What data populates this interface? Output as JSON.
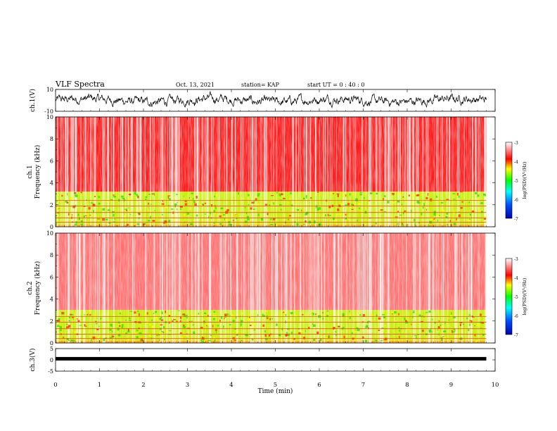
{
  "header": {
    "title": "VLF Spectra",
    "date": "Oct. 13, 2021",
    "station": "station= KAP",
    "start_ut": "start  UT =   0 : 40 : 0"
  },
  "colors": {
    "background": "#ffffff",
    "axis": "#000000",
    "trace": "#000000",
    "spectrum_high": "#ff0000",
    "spectrum_mid": "#ffff00",
    "spectrum_low": "#00ff00"
  },
  "chart_data": [
    {
      "type": "line",
      "panel": "ch1-waveform",
      "ylabel": "ch.1(V)",
      "ylim": [
        -10,
        10
      ],
      "yticks": [
        "10",
        "-10"
      ],
      "xlim": [
        0,
        10
      ],
      "description_value": "noisy waveform roughly between -7 and +9 V over 0-9.8 min"
    },
    {
      "type": "heatmap",
      "panel": "ch1-spectrogram",
      "ylabel": "ch.1\nFrequency (kHz)",
      "ylim": [
        0,
        10
      ],
      "yticks": [
        "0",
        "2",
        "4",
        "6",
        "8",
        "10"
      ],
      "xlim": [
        0,
        10
      ],
      "data_xmax": 9.8,
      "bands": [
        {
          "from": 0,
          "to": 0.2,
          "level": "low"
        },
        {
          "from": 0.2,
          "to": 3.2,
          "level": "mid"
        },
        {
          "from": 3.2,
          "to": 10,
          "level": "high"
        }
      ],
      "colorbar": {
        "label": "log(PSD)(V²/Hz)",
        "range": [
          -7,
          -3
        ],
        "ticks": [
          "-3",
          "-4",
          "-5",
          "-6",
          "-7"
        ]
      }
    },
    {
      "type": "heatmap",
      "panel": "ch2-spectrogram",
      "ylabel": "ch.2\nFrequency (kHz)",
      "ylim": [
        0,
        10
      ],
      "yticks": [
        "0",
        "2",
        "4",
        "6",
        "8",
        "10"
      ],
      "xlim": [
        0,
        10
      ],
      "data_xmax": 9.8,
      "bands": [
        {
          "from": 0,
          "to": 0.2,
          "level": "low"
        },
        {
          "from": 0.2,
          "to": 3.0,
          "level": "mid"
        },
        {
          "from": 3.0,
          "to": 10,
          "level": "pale"
        }
      ],
      "colorbar": {
        "label": "log(PSD)(V²/Hz)",
        "range": [
          -7,
          -3
        ],
        "ticks": [
          "-3",
          "-4",
          "-5",
          "-6",
          "-7"
        ]
      }
    },
    {
      "type": "line",
      "panel": "ch3-waveform",
      "ylabel": "ch.3(V)",
      "ylim": [
        -5,
        5
      ],
      "yticks": [
        "5",
        "0",
        "-5"
      ],
      "xlim": [
        0,
        10
      ],
      "baseline_value": 0.5
    }
  ],
  "xaxis": {
    "label": "Time (min)",
    "ticks": [
      "0",
      "1",
      "2",
      "3",
      "4",
      "5",
      "6",
      "7",
      "8",
      "9",
      "10"
    ]
  }
}
